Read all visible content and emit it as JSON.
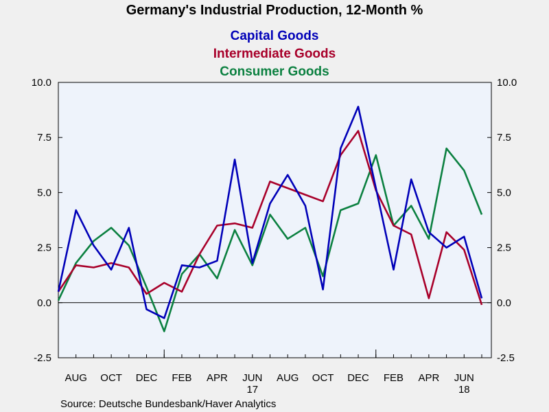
{
  "chart_data": {
    "type": "line",
    "title": "Germany's Industrial Production, 12-Month %",
    "source": "Source:  Deutsche Bundesbank/Haver Analytics",
    "ylim": [
      -2.5,
      10.0
    ],
    "yticks": [
      "10.0",
      "7.5",
      "5.0",
      "2.5",
      "0.0",
      "-2.5"
    ],
    "ytick_values": [
      10.0,
      7.5,
      5.0,
      2.5,
      0.0,
      -2.5
    ],
    "x": [
      "2016-07",
      "2016-08",
      "2016-09",
      "2016-10",
      "2016-11",
      "2016-12",
      "2017-01",
      "2017-02",
      "2017-03",
      "2017-04",
      "2017-05",
      "2017-06",
      "2017-07",
      "2017-08",
      "2017-09",
      "2017-10",
      "2017-11",
      "2017-12",
      "2018-01",
      "2018-02",
      "2018-03",
      "2018-04",
      "2018-05",
      "2018-06",
      "2018-07"
    ],
    "xtick_labels": [
      {
        "month": "2016-08",
        "label": "AUG"
      },
      {
        "month": "2016-10",
        "label": "OCT"
      },
      {
        "month": "2016-12",
        "label": "DEC"
      },
      {
        "month": "2017-02",
        "label": "FEB"
      },
      {
        "month": "2017-04",
        "label": "APR"
      },
      {
        "month": "2017-06",
        "label": "JUN"
      },
      {
        "month": "2017-08",
        "label": "AUG"
      },
      {
        "month": "2017-10",
        "label": "OCT"
      },
      {
        "month": "2017-12",
        "label": "DEC"
      },
      {
        "month": "2018-02",
        "label": "FEB"
      },
      {
        "month": "2018-04",
        "label": "APR"
      },
      {
        "month": "2018-06",
        "label": "JUN"
      }
    ],
    "year_labels": [
      {
        "month": "2017-06",
        "label": "17"
      },
      {
        "month": "2018-06",
        "label": "18"
      }
    ],
    "grid": false,
    "zero_line": true,
    "legend_position": "top-center",
    "series": [
      {
        "name": "Capital Goods",
        "color": "#0000b8",
        "values": [
          0.5,
          4.2,
          2.6,
          1.5,
          3.4,
          -0.3,
          -0.7,
          1.7,
          1.6,
          1.9,
          6.5,
          1.8,
          4.5,
          5.8,
          4.4,
          0.6,
          7.0,
          8.9,
          5.2,
          1.5,
          5.6,
          3.2,
          2.5,
          3.0,
          0.2
        ]
      },
      {
        "name": "Intermediate Goods",
        "color": "#a8002a",
        "values": [
          0.5,
          1.7,
          1.6,
          1.8,
          1.6,
          0.4,
          0.9,
          0.5,
          2.2,
          3.5,
          3.6,
          3.4,
          5.5,
          5.2,
          4.9,
          4.6,
          6.7,
          7.8,
          5.1,
          3.5,
          3.1,
          0.2,
          3.2,
          2.4,
          -0.1
        ]
      },
      {
        "name": "Consumer Goods",
        "color": "#0b8040",
        "values": [
          0.1,
          1.8,
          2.8,
          3.4,
          2.6,
          0.7,
          -1.3,
          1.3,
          2.2,
          1.1,
          3.3,
          1.7,
          4.0,
          2.9,
          3.4,
          1.2,
          4.2,
          4.5,
          6.7,
          3.5,
          4.4,
          2.9,
          7.0,
          6.0,
          4.0
        ]
      }
    ],
    "colors": {
      "plot_background": "#eef3fb",
      "page_background": "#f0f0f0"
    }
  }
}
